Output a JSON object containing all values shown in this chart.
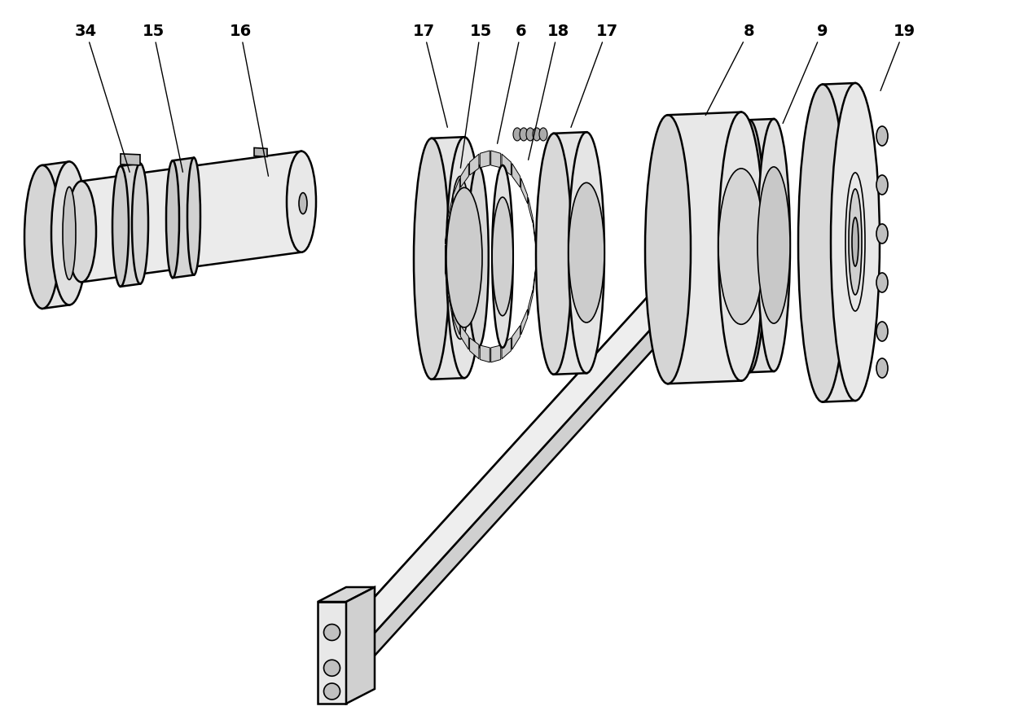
{
  "figure_width": 12.4,
  "figure_height": 8.79,
  "dpi": 100,
  "bg": "#ffffff",
  "lc": "#000000",
  "shaft_fill": "#e8e8e8",
  "shaft_dark": "#cccccc",
  "shaft_darker": "#b0b0b0",
  "disc_fill": "#e5e5e5",
  "disc_dark": "#c8c8c8"
}
